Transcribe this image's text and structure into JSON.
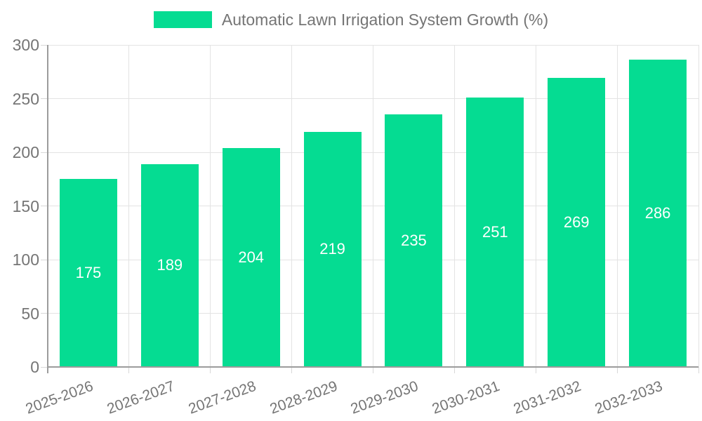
{
  "chart_data": {
    "type": "bar",
    "title": "Automatic Lawn Irrigation System Growth (%)",
    "legend_label": "Automatic Lawn Irrigation System Growth (%)",
    "legend_position": "top",
    "categories": [
      "2025-2026",
      "2026-2027",
      "2027-2028",
      "2028-2029",
      "2029-2030",
      "2030-2031",
      "2031-2032",
      "2032-2033"
    ],
    "values": [
      175,
      189,
      204,
      219,
      235,
      251,
      269,
      286
    ],
    "show_value_labels": true,
    "xlabel": "",
    "ylabel": "",
    "ylim": [
      0,
      300
    ],
    "yticks": [
      0,
      50,
      100,
      150,
      200,
      250,
      300
    ],
    "grid": true,
    "colors": {
      "bar": "#05DC92",
      "value_label": "#FFFFFF",
      "grid": "#E3E3E3",
      "tick": "#D8D8D8",
      "axis": "#9C9C9C",
      "text": "#757575"
    }
  }
}
